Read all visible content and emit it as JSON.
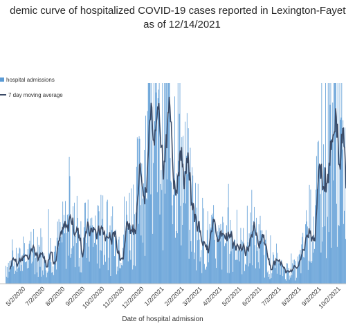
{
  "chart_data": {
    "type": "bar",
    "title_line1": "demic curve of hospitalized COVID-19 cases reported in Lexington-Fayette",
    "title_line2": "as of 12/14/2021",
    "xlabel": "Date of hospital admission",
    "ylabel": "",
    "legend": [
      "hospital admissions",
      "7 day moving average"
    ],
    "legend_placement": "left",
    "grid": false,
    "colors": {
      "bars": "#5b9bd5",
      "line": "#3a4a66"
    },
    "x_ticks": [
      "5/2/2020",
      "7/2/2020",
      "8/2/2020",
      "9/2/2020",
      "10/2/2020",
      "11/2/2020",
      "12/2/2020",
      "1/2/2021",
      "2/2/2021",
      "3/2/2021",
      "4/2/2021",
      "5/2/2021",
      "6/2/2021",
      "7/2/2021",
      "8/2/2021",
      "9/2/2021",
      "10/2/2021"
    ],
    "moving_average_control": [
      [
        "2020-05-10",
        2
      ],
      [
        "2020-06-15",
        3
      ],
      [
        "2020-07-20",
        4
      ],
      [
        "2020-08-05",
        6
      ],
      [
        "2020-08-25",
        5
      ],
      [
        "2020-09-15",
        5.5
      ],
      [
        "2020-10-10",
        4
      ],
      [
        "2020-10-25",
        5
      ],
      [
        "2020-11-10",
        7
      ],
      [
        "2020-11-25",
        10
      ],
      [
        "2020-12-05",
        16
      ],
      [
        "2020-12-20",
        13
      ],
      [
        "2021-01-02",
        19
      ],
      [
        "2021-01-12",
        14
      ],
      [
        "2021-01-22",
        17
      ],
      [
        "2021-02-02",
        11
      ],
      [
        "2021-02-15",
        8
      ],
      [
        "2021-03-05",
        5
      ],
      [
        "2021-03-25",
        4
      ],
      [
        "2021-04-15",
        5
      ],
      [
        "2021-05-02",
        3.5
      ],
      [
        "2021-05-20",
        5
      ],
      [
        "2021-06-10",
        2.5
      ],
      [
        "2021-07-02",
        1.5
      ],
      [
        "2021-07-25",
        1.5
      ],
      [
        "2021-08-08",
        4
      ],
      [
        "2021-08-25",
        8
      ],
      [
        "2021-09-10",
        14
      ],
      [
        "2021-09-22",
        20
      ],
      [
        "2021-10-05",
        13
      ]
    ],
    "y_max": 22
  }
}
